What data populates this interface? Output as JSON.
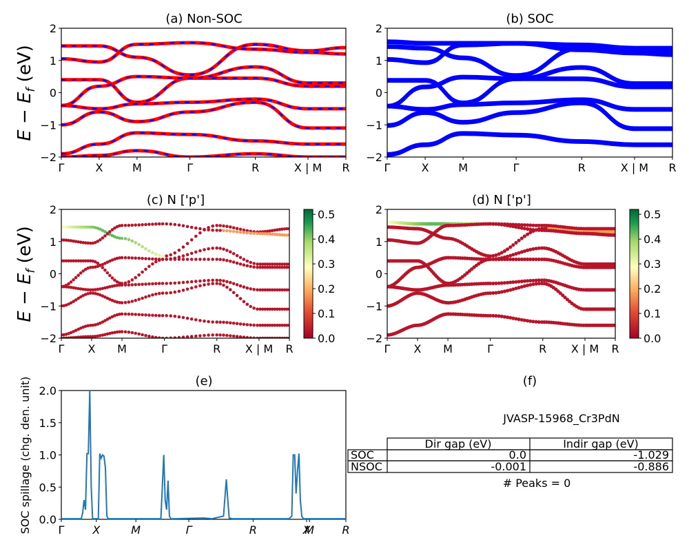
{
  "panels": {
    "a": {
      "title": "(a) Non-SOC",
      "ylabel": "E − E",
      "ylabel_sub": "f",
      "ylabel_unit": " (eV)"
    },
    "b": {
      "title": "(b) SOC"
    },
    "c": {
      "title": "(c)  N ['p']",
      "ylabel": "E − E",
      "ylabel_sub": "f",
      "ylabel_unit": " (eV)"
    },
    "d": {
      "title": "(d) N ['p']"
    },
    "e": {
      "title": "(e)",
      "ylabel": "SOC spillage (chg. den. unit)"
    },
    "f": {
      "title": "(f)",
      "compound": "JVASP-15968_Cr3PdN",
      "peaks": "# Peaks = 0"
    }
  },
  "band_axes": {
    "ylim": [
      -2,
      2
    ],
    "yticks": [
      "2",
      "1",
      "0",
      "−1",
      "−2"
    ],
    "kpath": [
      "Γ",
      "X",
      "M",
      "Γ",
      "R",
      "X | M",
      "R"
    ],
    "kpos": [
      0,
      0.133,
      0.266,
      0.452,
      0.682,
      0.867,
      1.0
    ]
  },
  "colorbar": {
    "ticks": [
      "0.5",
      "0.4",
      "0.3",
      "0.2",
      "0.1",
      "0.0"
    ],
    "range": [
      0,
      0.52
    ]
  },
  "gap_table": {
    "headers": [
      "Dir gap (eV)",
      "Indir gap (eV)"
    ],
    "rows": [
      {
        "label": "SOC",
        "dir": "0.0",
        "indir": "-1.029"
      },
      {
        "label": "NSOC",
        "dir": "-0.001",
        "indir": "-0.886"
      }
    ]
  },
  "colors": {
    "nonsoc_solid": "#ff0000",
    "nonsoc_dash": "#0000ff",
    "soc": "#0000ff",
    "spillage": "#1f77b4"
  },
  "chart_data": [
    {
      "type": "line",
      "title": "(a) Non-SOC",
      "ylabel": "E − E_f (eV)",
      "ylim": [
        -2,
        2
      ],
      "x_ticks": [
        "Γ",
        "X",
        "M",
        "Γ",
        "R",
        "X | M",
        "R"
      ],
      "series": [
        {
          "values": [
            1.45,
            1.45,
            1.1,
            0.55,
            1.5,
            1.3,
            1.4
          ]
        },
        {
          "values": [
            1.05,
            0.95,
            1.5,
            1.55,
            1.35,
            1.25,
            1.2
          ]
        },
        {
          "values": [
            0.4,
            0.4,
            -0.3,
            0.45,
            0.45,
            0.2,
            0.2
          ]
        },
        {
          "values": [
            -0.4,
            0.2,
            0.5,
            0.45,
            0.8,
            0.3,
            0.3
          ]
        },
        {
          "values": [
            -0.4,
            -0.5,
            -0.35,
            -0.3,
            -0.2,
            -0.5,
            -0.5
          ]
        },
        {
          "values": [
            -1.0,
            -0.6,
            -0.9,
            -0.6,
            -0.3,
            -1.1,
            -1.1
          ]
        },
        {
          "values": [
            -1.9,
            -1.6,
            -1.25,
            -1.3,
            -1.5,
            -1.6,
            -1.6
          ]
        },
        {
          "values": [
            -2.0,
            -1.95,
            -1.8,
            -2.0,
            -1.9,
            -2.0,
            -2.0
          ]
        }
      ]
    },
    {
      "type": "line",
      "title": "(b) SOC",
      "ylim": [
        -2,
        2
      ],
      "x_ticks": [
        "Γ",
        "X",
        "M",
        "Γ",
        "R",
        "X | M",
        "R"
      ],
      "series": [
        {
          "values": [
            1.6,
            1.55,
            1.55,
            1.55,
            1.5,
            1.4,
            1.4
          ]
        },
        {
          "values": [
            1.45,
            1.4,
            1.1,
            0.55,
            1.4,
            1.3,
            1.3
          ]
        },
        {
          "values": [
            1.05,
            0.95,
            1.5,
            1.55,
            1.35,
            1.25,
            1.2
          ]
        },
        {
          "values": [
            0.4,
            0.4,
            -0.3,
            0.45,
            0.45,
            0.2,
            0.2
          ]
        },
        {
          "values": [
            -0.4,
            0.2,
            0.5,
            0.45,
            0.8,
            0.3,
            0.3
          ]
        },
        {
          "values": [
            -0.4,
            -0.5,
            -0.35,
            -0.3,
            -0.2,
            -0.5,
            -0.5
          ]
        },
        {
          "values": [
            -1.0,
            -0.6,
            -0.9,
            -0.6,
            -0.3,
            -1.1,
            -1.1
          ]
        },
        {
          "values": [
            -1.9,
            -1.6,
            -1.25,
            -1.3,
            -1.5,
            -1.6,
            -1.6
          ]
        }
      ]
    },
    {
      "type": "scatter",
      "title": "(c)  N ['p']",
      "ylabel": "E − E_f (eV)",
      "ylim": [
        -2,
        2
      ],
      "color_range": [
        0,
        0.5
      ],
      "x_ticks": [
        "Γ",
        "X",
        "M",
        "Γ",
        "R",
        "X | M",
        "R"
      ]
    },
    {
      "type": "scatter",
      "title": "(d) N ['p']",
      "ylim": [
        -2,
        2
      ],
      "color_range": [
        0,
        0.5
      ],
      "x_ticks": [
        "Γ",
        "X",
        "M",
        "Γ",
        "R",
        "X | M",
        "R"
      ]
    },
    {
      "type": "line",
      "title": "(e)",
      "ylabel": "SOC spillage (chg. den. unit)",
      "ylim": [
        0,
        2.0
      ],
      "y_ticks": [
        "0.0",
        "0.5",
        "1.0",
        "1.5",
        "2.0"
      ],
      "x_ticks": [
        "Γ",
        "X",
        "M",
        "Γ",
        "R",
        "X",
        "M",
        "R"
      ],
      "series": [
        {
          "x": [
            0,
            0.07,
            0.075,
            0.08,
            0.085,
            0.09,
            0.095,
            0.1,
            0.105,
            0.11,
            0.115,
            0.12,
            0.13,
            0.135,
            0.14,
            0.145,
            0.15,
            0.155,
            0.16,
            0.165,
            0.17,
            0.2,
            0.35,
            0.36,
            0.365,
            0.37,
            0.375,
            0.38,
            0.385,
            0.39,
            0.4,
            0.5,
            0.53,
            0.57,
            0.58,
            0.585,
            0.59,
            0.6,
            0.65,
            0.8,
            0.81,
            0.815,
            0.82,
            0.825,
            0.83,
            0.835,
            0.84,
            0.845,
            0.85,
            0.86,
            1.0
          ],
          "values": [
            0.01,
            0.01,
            0.1,
            0.3,
            0.15,
            1.02,
            1.02,
            2.0,
            0.5,
            0.01,
            0.01,
            0.01,
            0.01,
            1.02,
            0.95,
            1.0,
            0.98,
            0.8,
            0.05,
            0.01,
            0.01,
            0.01,
            0.01,
            1.0,
            0.3,
            0.15,
            0.6,
            0.05,
            0.01,
            0.01,
            0.01,
            0.02,
            0.01,
            0.05,
            0.62,
            0.3,
            0.02,
            0.01,
            0.01,
            0.01,
            0.05,
            1.0,
            1.0,
            0.4,
            0.75,
            1.02,
            0.3,
            0.05,
            0.01,
            0.01,
            0.01
          ]
        }
      ]
    }
  ]
}
